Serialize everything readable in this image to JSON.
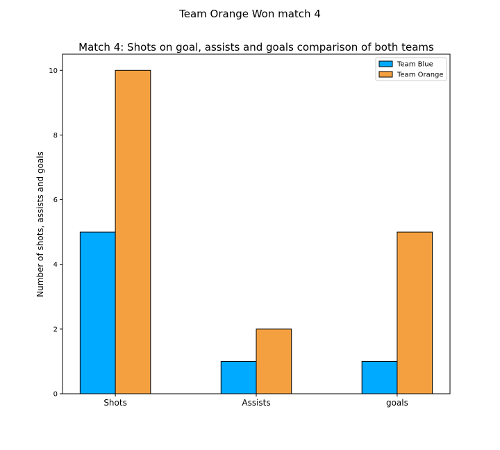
{
  "suptitle": "Team Orange Won match 4",
  "chart_data": {
    "type": "bar",
    "title": "Match 4: Shots on goal, assists and goals comparison of both teams",
    "xlabel": "",
    "ylabel": "Number of shots, assists and goals",
    "categories": [
      "Shots",
      "Assists",
      "goals"
    ],
    "series": [
      {
        "name": "Team Blue",
        "values": [
          5,
          1,
          1
        ],
        "color": "#00aaff"
      },
      {
        "name": "Team Orange",
        "values": [
          10,
          2,
          5
        ],
        "color": "#f5a040"
      }
    ],
    "ylim": [
      0,
      10.5
    ],
    "yticks": [
      "0",
      "2",
      "4",
      "6",
      "8",
      "10"
    ],
    "grid": false,
    "legend_position": "upper right"
  }
}
